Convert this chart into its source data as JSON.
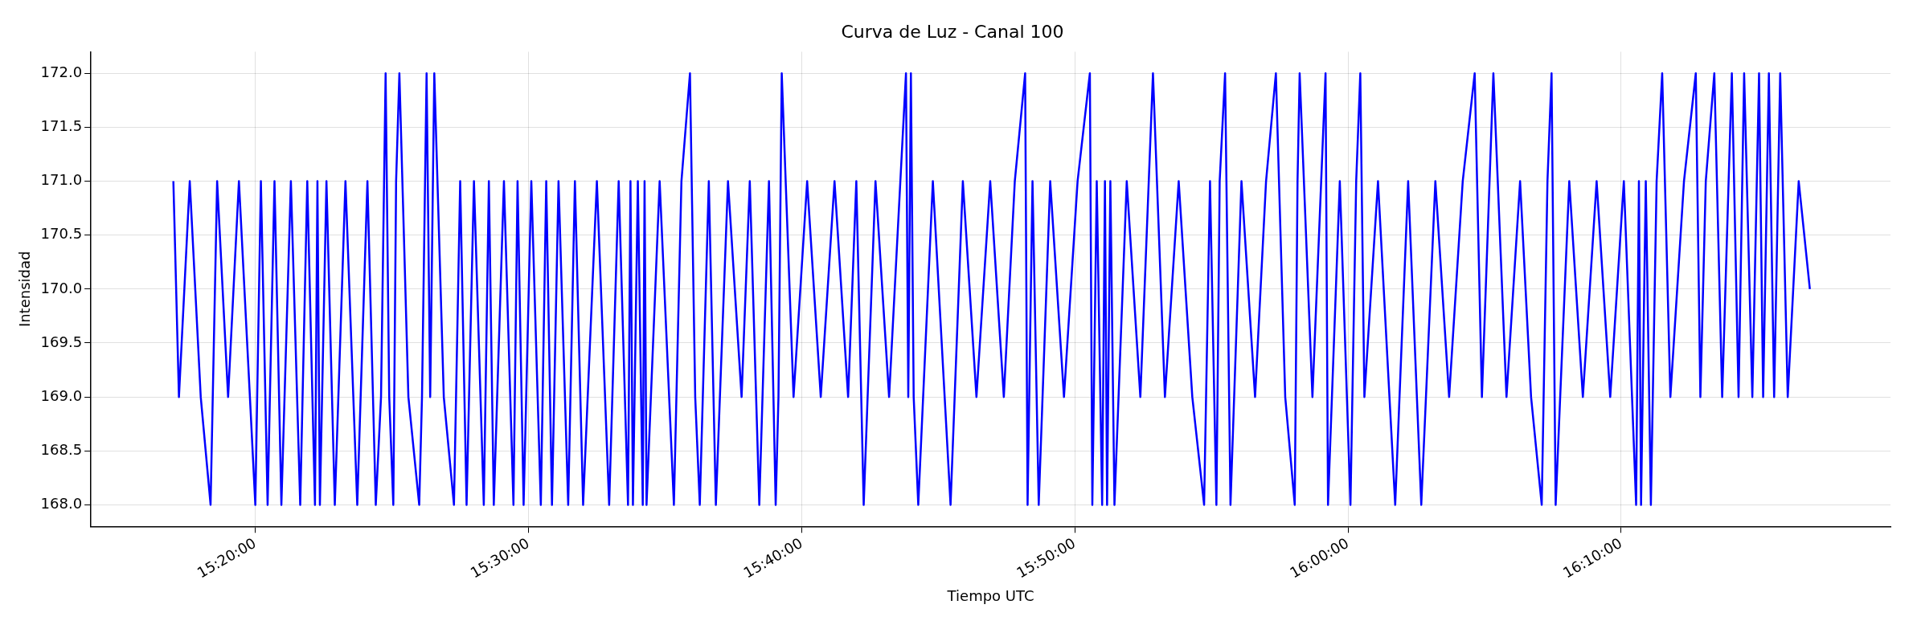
{
  "chart_data": {
    "type": "line",
    "title": "Curva de Luz - Canal 100",
    "xlabel": "Tiempo UTC",
    "ylabel": "Intensidad",
    "x": [
      15.2833,
      15.2867,
      15.2933,
      15.3,
      15.306,
      15.31,
      15.3167,
      15.3233,
      15.33,
      15.3333,
      15.3367,
      15.3408,
      15.345,
      15.3492,
      15.355,
      15.3607,
      15.365,
      15.3697,
      15.3712,
      15.3727,
      15.3767,
      15.3818,
      15.3883,
      15.3955,
      15.4017,
      15.4068,
      15.41,
      15.4128,
      15.415,
      15.4175,
      15.4192,
      15.4212,
      15.4267,
      15.4333,
      15.435,
      15.4378,
      15.44,
      15.4425,
      15.4483,
      15.4545,
      15.4583,
      15.4622,
      15.4667,
      15.4727,
      15.4758,
      15.4788,
      15.485,
      15.4908,
      15.4933,
      15.497,
      15.5017,
      15.5075,
      15.5108,
      15.5143,
      15.5183,
      15.5242,
      15.5283,
      15.5333,
      15.5417,
      15.5492,
      15.555,
      15.5607,
      15.5622,
      15.5637,
      15.5667,
      15.5697,
      15.5708,
      15.572,
      15.58,
      15.5887,
      15.5933,
      15.5985,
      15.6017,
      15.6045,
      15.61,
      15.6143,
      15.6217,
      15.63,
      15.635,
      15.6408,
      15.6467,
      15.6508,
      15.6525,
      15.6545,
      15.6617,
      15.67,
      15.6783,
      15.6867,
      15.695,
      15.7,
      15.7045,
      15.7117,
      15.72,
      15.7303,
      15.7317,
      15.7333,
      15.735,
      15.7378,
      15.7467,
      15.7575,
      15.765,
      15.7733,
      15.7817,
      15.79,
      15.7967,
      15.803,
      15.8045,
      15.8075,
      15.8113,
      15.8183,
      15.8267,
      15.835,
      15.8425,
      15.844,
      15.8467,
      15.85,
      15.8517,
      15.853,
      15.855,
      15.8575,
      15.865,
      15.8733,
      15.881,
      15.8883,
      15.8967,
      15.905,
      15.9122,
      15.9158,
      15.9197,
      15.9217,
      15.925,
      15.9283,
      15.935,
      15.9433,
      15.95,
      15.956,
      15.9617,
      15.9675,
      15.9692,
      15.9705,
      15.9783,
      15.9863,
      15.9878,
      15.995,
      16.0015,
      16.005,
      16.0075,
      16.01,
      16.0183,
      16.0288,
      16.0367,
      16.0447,
      16.0533,
      16.0617,
      16.07,
      16.0773,
      16.0817,
      16.0887,
      16.0967,
      16.105,
      16.1117,
      16.1182,
      16.1217,
      16.1242,
      16.1267,
      16.135,
      16.1433,
      16.1517,
      16.16,
      16.1683,
      16.1758,
      16.1775,
      16.1788,
      16.1817,
      16.1848,
      16.1883,
      16.1917,
      16.1967,
      16.205,
      16.2122,
      16.215,
      16.2183,
      16.2235,
      16.2283,
      16.2342,
      16.2383,
      16.2417,
      16.2467,
      16.2508,
      16.2533,
      16.2568,
      16.26,
      16.2637,
      16.2683,
      16.275,
      16.2818
    ],
    "series": [
      {
        "color": "#0000ff",
        "values": [
          171,
          169,
          171,
          169,
          168,
          171,
          169,
          171,
          169,
          168,
          171,
          168,
          171,
          168,
          171,
          168,
          171,
          168,
          171,
          168,
          171,
          168,
          171,
          168,
          171,
          168,
          169,
          172,
          169,
          168,
          171,
          172,
          169,
          168,
          169,
          172,
          169,
          172,
          169,
          168,
          171,
          168,
          171,
          168,
          171,
          168,
          171,
          168,
          171,
          168,
          171,
          168,
          171,
          168,
          171,
          168,
          171,
          168,
          171,
          168,
          171,
          168,
          171,
          168,
          171,
          168,
          171,
          168,
          171,
          168,
          171,
          172,
          169,
          168,
          171,
          168,
          171,
          169,
          171,
          168,
          171,
          168,
          169,
          172,
          169,
          171,
          169,
          171,
          169,
          171,
          168,
          171,
          169,
          172,
          169,
          172,
          169,
          168,
          171,
          168,
          171,
          169,
          171,
          169,
          171,
          172,
          168,
          171,
          168,
          171,
          169,
          171,
          172,
          168,
          171,
          168,
          171,
          168,
          171,
          168,
          171,
          169,
          172,
          169,
          171,
          169,
          168,
          171,
          168,
          171,
          172,
          168,
          171,
          169,
          171,
          172,
          169,
          168,
          171,
          172,
          169,
          172,
          168,
          171,
          168,
          171,
          172,
          169,
          171,
          168,
          171,
          168,
          171,
          169,
          171,
          172,
          169,
          172,
          169,
          171,
          169,
          168,
          171,
          172,
          168,
          171,
          169,
          171,
          169,
          171,
          168,
          171,
          168,
          171,
          168,
          171,
          172,
          169,
          171,
          172,
          169,
          171,
          172,
          169,
          172,
          169,
          172,
          169,
          172,
          169,
          172,
          169,
          172,
          169,
          171,
          170
        ]
      }
    ],
    "xlim": [
      15.233,
      16.331
    ],
    "xticks": [
      {
        "value": 15.3333,
        "label": "15:20:00"
      },
      {
        "value": 15.5,
        "label": "15:30:00"
      },
      {
        "value": 15.6667,
        "label": "15:40:00"
      },
      {
        "value": 15.8333,
        "label": "15:50:00"
      },
      {
        "value": 16.0,
        "label": "16:00:00"
      },
      {
        "value": 16.1667,
        "label": "16:10:00"
      }
    ],
    "ylim": [
      167.8,
      172.2
    ],
    "yticks": [
      {
        "value": 168,
        "label": "168.0"
      },
      {
        "value": 168.5,
        "label": "168.5"
      },
      {
        "value": 169,
        "label": "169.0"
      },
      {
        "value": 169.5,
        "label": "169.5"
      },
      {
        "value": 170,
        "label": "170.0"
      },
      {
        "value": 170.5,
        "label": "170.5"
      },
      {
        "value": 171,
        "label": "171.0"
      },
      {
        "value": 171.5,
        "label": "171.5"
      },
      {
        "value": 172,
        "label": "172.0"
      }
    ],
    "grid": true
  }
}
